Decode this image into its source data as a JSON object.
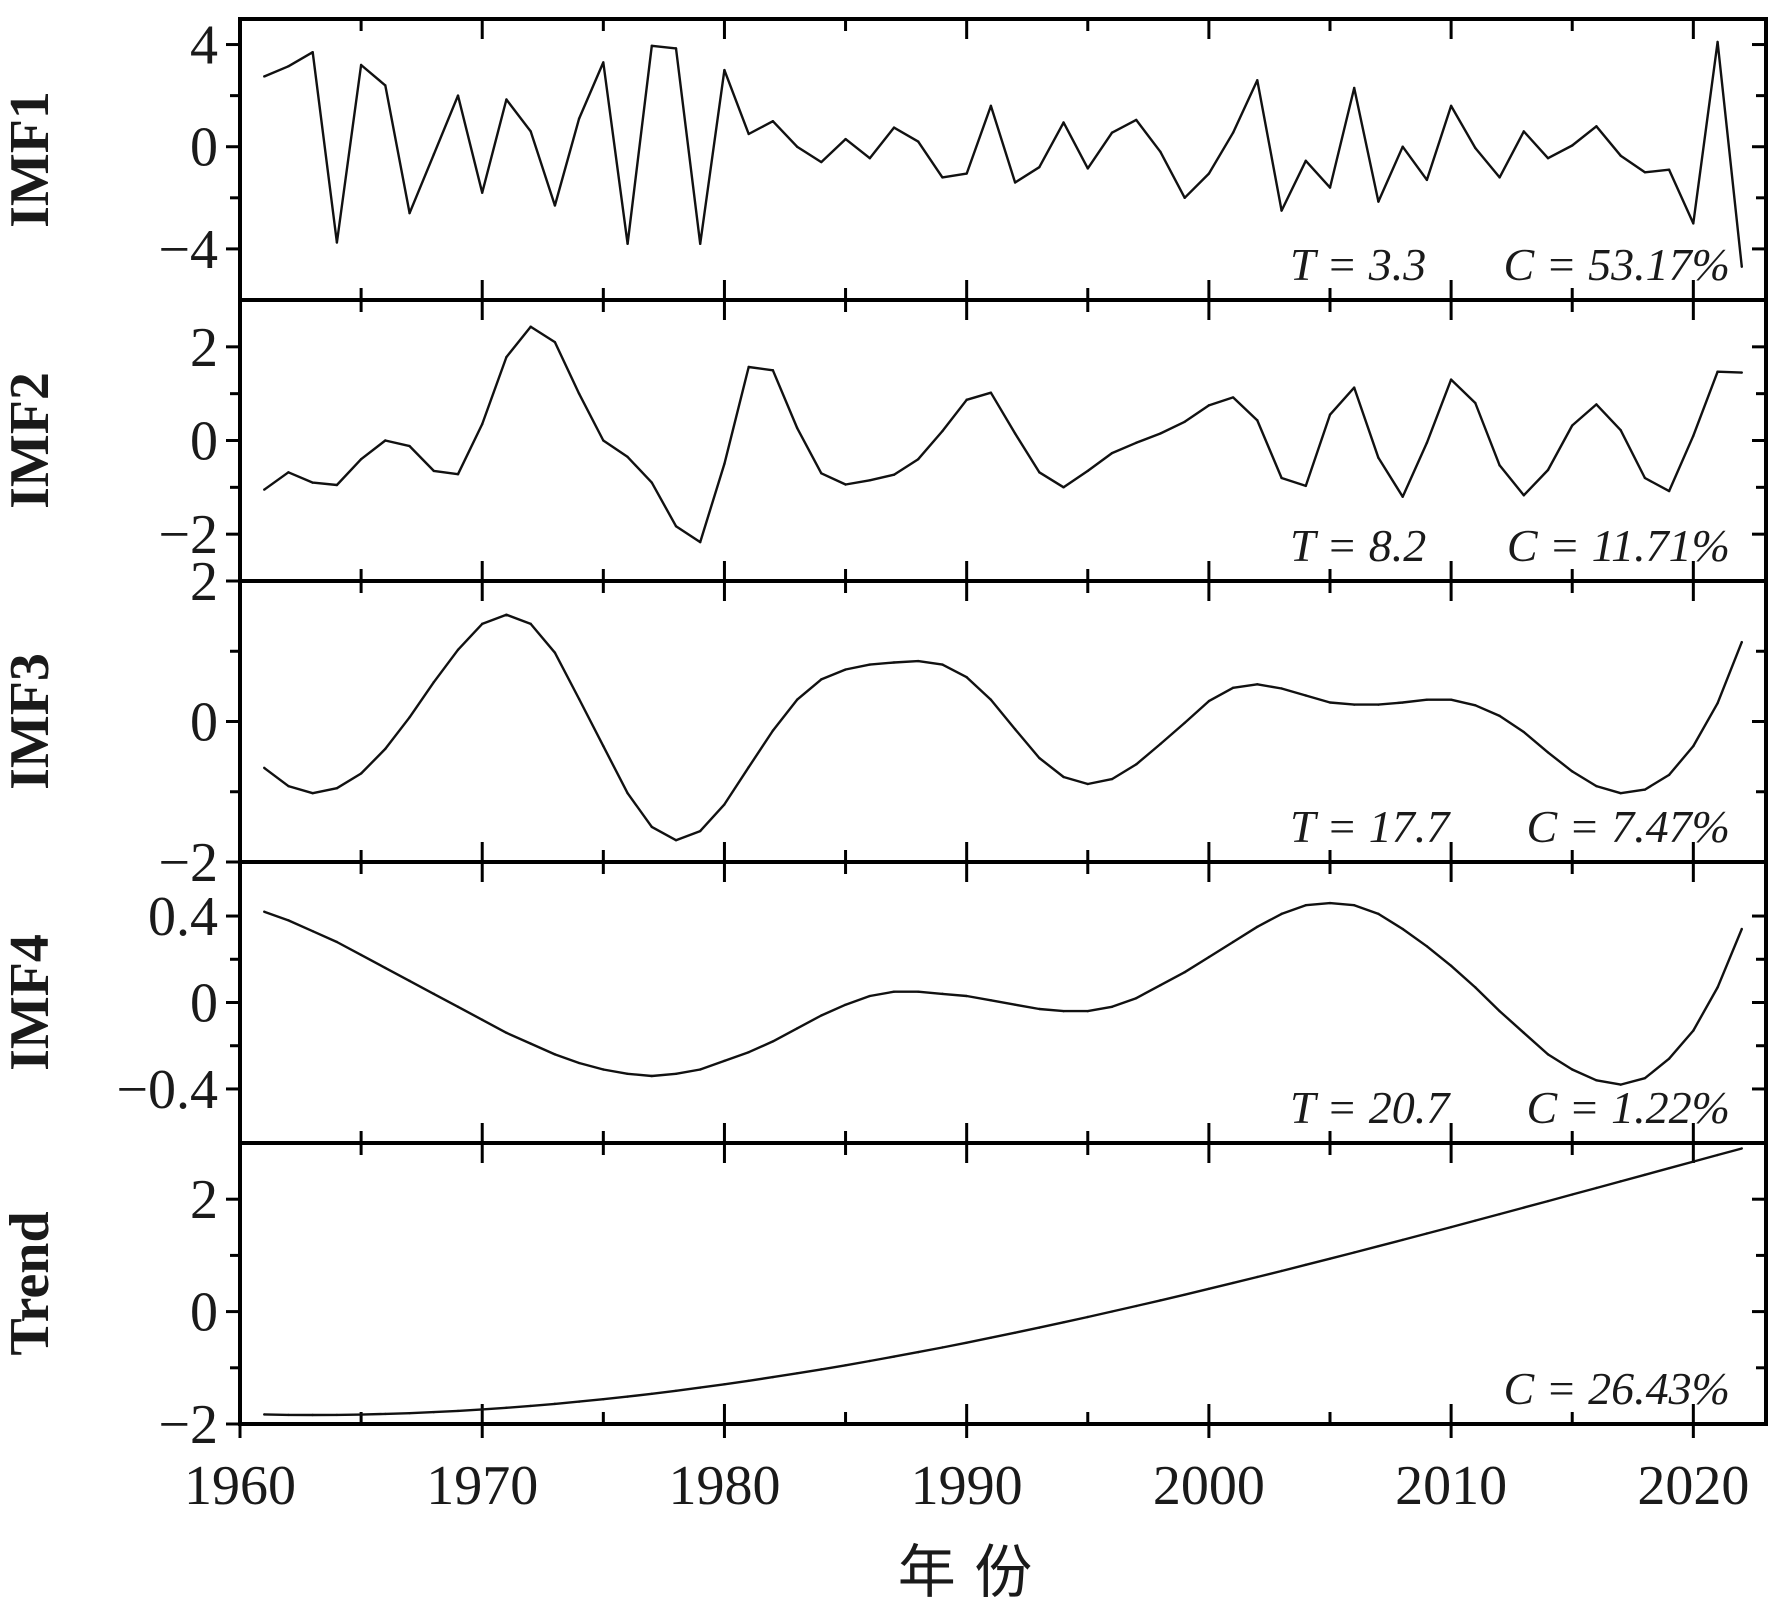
{
  "chart_data": {
    "type": "line",
    "xlabel": "年 份",
    "xlim": [
      1960,
      2023
    ],
    "xticks": [
      1960,
      1970,
      1980,
      1990,
      2000,
      2010,
      2020
    ],
    "xticks_minor": [
      1965,
      1975,
      1985,
      1995,
      2005,
      2015
    ],
    "x": [
      1961,
      1962,
      1963,
      1964,
      1965,
      1966,
      1967,
      1968,
      1969,
      1970,
      1971,
      1972,
      1973,
      1974,
      1975,
      1976,
      1977,
      1978,
      1979,
      1980,
      1981,
      1982,
      1983,
      1984,
      1985,
      1986,
      1987,
      1988,
      1989,
      1990,
      1991,
      1992,
      1993,
      1994,
      1995,
      1996,
      1997,
      1998,
      1999,
      2000,
      2001,
      2002,
      2003,
      2004,
      2005,
      2006,
      2007,
      2008,
      2009,
      2010,
      2011,
      2012,
      2013,
      2014,
      2015,
      2016,
      2017,
      2018,
      2019,
      2020,
      2021,
      2022
    ],
    "grid": false,
    "line_color": "#111111",
    "panels": [
      {
        "ylabel": "IMF1",
        "ylim": [
          -6,
          5
        ],
        "yticks": [
          4,
          0,
          -4
        ],
        "ytick_labels": [
          "4",
          "0",
          "−4"
        ],
        "yticks_minor": [
          2,
          -2
        ],
        "T_label": "T = 3.3",
        "C_label": "C = 53.17%",
        "values": [
          2.75,
          3.15,
          3.7,
          -3.75,
          3.2,
          2.4,
          -2.6,
          -0.3,
          2.0,
          -1.8,
          1.85,
          0.6,
          -2.3,
          1.1,
          3.3,
          -3.8,
          3.95,
          3.85,
          -3.8,
          3.0,
          0.5,
          1.0,
          0.0,
          -0.6,
          0.3,
          -0.45,
          0.75,
          0.2,
          -1.2,
          -1.05,
          1.6,
          -1.4,
          -0.8,
          0.95,
          -0.85,
          0.55,
          1.05,
          -0.2,
          -2.0,
          -1.05,
          0.55,
          2.6,
          -2.5,
          -0.55,
          -1.6,
          2.3,
          -2.15,
          0.0,
          -1.3,
          1.6,
          -0.05,
          -1.2,
          0.6,
          -0.45,
          0.05,
          0.8,
          -0.35,
          -1.0,
          -0.9,
          -3.0,
          4.1,
          -4.7
        ]
      },
      {
        "ylabel": "IMF2",
        "ylim": [
          -3,
          3
        ],
        "yticks": [
          2,
          0,
          -2
        ],
        "ytick_labels": [
          "2",
          "0",
          "−2"
        ],
        "yticks_minor": [
          1,
          -1
        ],
        "T_label": "T = 8.2",
        "C_label": "C = 11.71%",
        "values": [
          -1.05,
          -0.68,
          -0.9,
          -0.95,
          -0.4,
          0.0,
          -0.12,
          -0.65,
          -0.72,
          0.35,
          1.78,
          2.43,
          2.1,
          1.0,
          0.0,
          -0.35,
          -0.9,
          -1.83,
          -2.17,
          -0.5,
          1.57,
          1.5,
          0.27,
          -0.7,
          -0.94,
          -0.85,
          -0.73,
          -0.4,
          0.2,
          0.87,
          1.02,
          0.15,
          -0.68,
          -1.0,
          -0.65,
          -0.27,
          -0.05,
          0.15,
          0.4,
          0.75,
          0.92,
          0.43,
          -0.8,
          -0.97,
          0.55,
          1.13,
          -0.37,
          -1.2,
          -0.05,
          1.3,
          0.8,
          -0.53,
          -1.17,
          -0.63,
          0.32,
          0.77,
          0.22,
          -0.8,
          -1.08,
          0.1,
          1.47,
          1.45
        ]
      },
      {
        "ylabel": "IMF3",
        "ylim": [
          -2,
          2
        ],
        "yticks": [
          2,
          0,
          -2
        ],
        "ytick_labels": [
          "2",
          "0",
          "−2"
        ],
        "yticks_minor": [
          1,
          -1
        ],
        "T_label": "T = 17.7",
        "C_label": "C = 7.47%",
        "values": [
          -0.66,
          -0.92,
          -1.02,
          -0.95,
          -0.74,
          -0.39,
          0.06,
          0.56,
          1.02,
          1.39,
          1.52,
          1.39,
          0.98,
          0.32,
          -0.35,
          -1.02,
          -1.5,
          -1.69,
          -1.56,
          -1.18,
          -0.65,
          -0.13,
          0.31,
          0.6,
          0.74,
          0.81,
          0.84,
          0.86,
          0.81,
          0.63,
          0.31,
          -0.11,
          -0.52,
          -0.79,
          -0.89,
          -0.82,
          -0.61,
          -0.32,
          -0.02,
          0.29,
          0.48,
          0.53,
          0.47,
          0.37,
          0.27,
          0.24,
          0.24,
          0.27,
          0.31,
          0.31,
          0.23,
          0.08,
          -0.15,
          -0.44,
          -0.71,
          -0.92,
          -1.02,
          -0.97,
          -0.76,
          -0.35,
          0.26,
          1.13
        ]
      },
      {
        "ylabel": "IMF4",
        "ylim": [
          -0.65,
          0.65
        ],
        "yticks": [
          0.4,
          0,
          -0.4
        ],
        "ytick_labels": [
          "0.4",
          "0",
          "−0.4"
        ],
        "yticks_minor": [
          0.2,
          -0.2
        ],
        "T_label": "T = 20.7",
        "C_label": "C = 1.22%",
        "values": [
          0.42,
          0.38,
          0.33,
          0.28,
          0.22,
          0.16,
          0.1,
          0.04,
          -0.02,
          -0.08,
          -0.14,
          -0.19,
          -0.24,
          -0.28,
          -0.31,
          -0.33,
          -0.34,
          -0.33,
          -0.31,
          -0.27,
          -0.23,
          -0.18,
          -0.12,
          -0.06,
          -0.01,
          0.03,
          0.05,
          0.05,
          0.04,
          0.03,
          0.01,
          -0.01,
          -0.03,
          -0.04,
          -0.04,
          -0.02,
          0.02,
          0.08,
          0.14,
          0.21,
          0.28,
          0.35,
          0.41,
          0.45,
          0.46,
          0.45,
          0.41,
          0.34,
          0.26,
          0.17,
          0.07,
          -0.04,
          -0.14,
          -0.24,
          -0.31,
          -0.36,
          -0.38,
          -0.35,
          -0.26,
          -0.13,
          0.07,
          0.34
        ]
      },
      {
        "ylabel": "Trend",
        "ylim": [
          -2,
          3
        ],
        "yticks": [
          2,
          0,
          -2
        ],
        "ytick_labels": [
          "2",
          "0",
          "−2"
        ],
        "yticks_minor": [
          1,
          -1
        ],
        "T_label": "",
        "C_label": "C = 26.43%",
        "values": [
          -1.83,
          -1.838,
          -1.84,
          -1.838,
          -1.832,
          -1.821,
          -1.807,
          -1.789,
          -1.767,
          -1.741,
          -1.711,
          -1.678,
          -1.642,
          -1.602,
          -1.559,
          -1.512,
          -1.462,
          -1.409,
          -1.352,
          -1.293,
          -1.231,
          -1.166,
          -1.098,
          -1.028,
          -0.955,
          -0.879,
          -0.801,
          -0.721,
          -0.638,
          -0.553,
          -0.465,
          -0.376,
          -0.285,
          -0.191,
          -0.096,
          0.001,
          0.099,
          0.2,
          0.301,
          0.405,
          0.51,
          0.616,
          0.723,
          0.832,
          0.942,
          1.052,
          1.164,
          1.276,
          1.39,
          1.504,
          1.619,
          1.734,
          1.85,
          1.966,
          2.083,
          2.2,
          2.317,
          2.434,
          2.552,
          2.669,
          2.786,
          2.903
        ]
      }
    ]
  }
}
